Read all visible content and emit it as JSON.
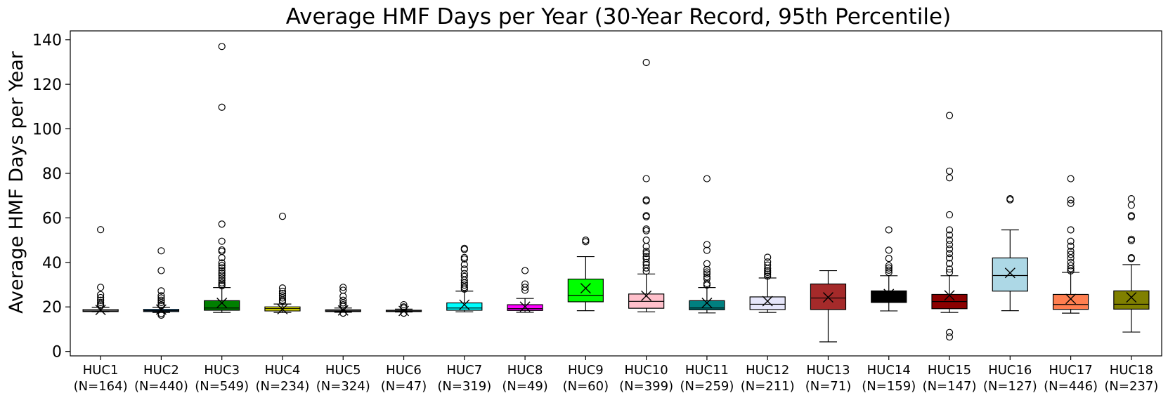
{
  "chart_data": {
    "type": "box",
    "title": "Average HMF Days per Year (30-Year Record, 95th Percentile)",
    "xlabel": "",
    "ylabel": "Average HMF Days per Year",
    "ylim": [
      -2,
      144
    ],
    "yticks": [
      0,
      20,
      40,
      60,
      80,
      100,
      120,
      140
    ],
    "grid": false,
    "categories": [
      {
        "name": "HUC1",
        "n_label": "(N=164)",
        "color": "#d3d3d3",
        "whislo": 17.8,
        "q1": 17.9,
        "med": 18.2,
        "q3": 18.8,
        "whishi": 19.8,
        "mean": 18.6,
        "fliers": [
          54.7,
          28.8,
          25.5,
          24.2,
          23.0,
          22.0,
          21.2,
          20.5
        ]
      },
      {
        "name": "HUC2",
        "n_label": "(N=440)",
        "color": "#1f77b4",
        "whislo": 17.5,
        "q1": 17.9,
        "med": 18.3,
        "q3": 18.9,
        "whishi": 19.8,
        "mean": 18.8,
        "fliers": [
          45.2,
          36.3,
          27.2,
          25.0,
          24.0,
          23.0,
          22.0,
          21.0,
          20.5,
          17.0,
          16.3
        ]
      },
      {
        "name": "HUC3",
        "n_label": "(N=549)",
        "color": "#008000",
        "whislo": 17.5,
        "q1": 18.5,
        "med": 19.5,
        "q3": 22.8,
        "whishi": 28.7,
        "mean": 21.8,
        "fliers": [
          137.0,
          109.7,
          57.2,
          49.5,
          45.6,
          45.0,
          42.1,
          39.8,
          38.6,
          37.6,
          36.3,
          35.2,
          34.2,
          33.0,
          31.9,
          30.8,
          30.0,
          29.5
        ]
      },
      {
        "name": "HUC4",
        "n_label": "(N=234)",
        "color": "#ffff00",
        "whislo": 17.5,
        "q1": 18.2,
        "med": 19.2,
        "q3": 20.0,
        "whishi": 21.3,
        "mean": 19.0,
        "fliers": [
          60.7,
          28.5,
          27.0,
          26.0,
          25.0,
          24.0,
          23.0,
          22.3
        ]
      },
      {
        "name": "HUC5",
        "n_label": "(N=324)",
        "color": "#808080",
        "whislo": 17.6,
        "q1": 17.9,
        "med": 18.2,
        "q3": 18.7,
        "whishi": 19.5,
        "mean": 18.4,
        "fliers": [
          28.8,
          27.5,
          24.8,
          23.0,
          21.8,
          21.0,
          20.3,
          17.2
        ]
      },
      {
        "name": "HUC6",
        "n_label": "(N=47)",
        "color": "#c0c0c0",
        "whislo": 17.7,
        "q1": 17.9,
        "med": 18.1,
        "q3": 18.5,
        "whishi": 19.0,
        "mean": 18.2,
        "fliers": [
          21.0,
          20.0,
          19.5,
          17.2
        ]
      },
      {
        "name": "HUC7",
        "n_label": "(N=319)",
        "color": "#00ffff",
        "whislo": 17.8,
        "q1": 18.5,
        "med": 19.5,
        "q3": 21.8,
        "whishi": 27.1,
        "mean": 21.0,
        "fliers": [
          46.3,
          45.8,
          42.2,
          41.5,
          39.0,
          37.0,
          35.0,
          33.7,
          32.0,
          30.8,
          29.8,
          28.8,
          28.0
        ]
      },
      {
        "name": "HUC8",
        "n_label": "(N=49)",
        "color": "#ff00ff",
        "whislo": 17.6,
        "q1": 18.4,
        "med": 19.2,
        "q3": 21.0,
        "whishi": 23.8,
        "mean": 20.1,
        "fliers": [
          36.3,
          30.3,
          28.8,
          27.5
        ]
      },
      {
        "name": "HUC9",
        "n_label": "(N=60)",
        "color": "#00ff00",
        "whislo": 18.3,
        "q1": 22.3,
        "med": 25.2,
        "q3": 32.5,
        "whishi": 42.6,
        "mean": 28.4,
        "fliers": [
          50.0,
          49.3
        ]
      },
      {
        "name": "HUC10",
        "n_label": "(N=399)",
        "color": "#ffc0cb",
        "whislo": 17.8,
        "q1": 19.4,
        "med": 22.5,
        "q3": 25.8,
        "whishi": 34.8,
        "mean": 25.0,
        "fliers": [
          129.8,
          77.6,
          68.1,
          67.6,
          61.0,
          60.5,
          55.0,
          54.2,
          50.0,
          47.2,
          45.0,
          44.0,
          42.6,
          41.7,
          40.0,
          39.0,
          37.5,
          36.0
        ]
      },
      {
        "name": "HUC11",
        "n_label": "(N=259)",
        "color": "#008080",
        "whislo": 17.3,
        "q1": 18.7,
        "med": 19.5,
        "q3": 22.8,
        "whishi": 28.7,
        "mean": 21.8,
        "fliers": [
          77.6,
          48.0,
          45.4,
          39.4,
          36.8,
          35.7,
          34.8,
          33.5,
          32.7,
          30.5,
          29.8
        ]
      },
      {
        "name": "HUC12",
        "n_label": "(N=211)",
        "color": "#e6e6fa",
        "whislo": 17.5,
        "q1": 18.8,
        "med": 21.2,
        "q3": 24.5,
        "whishi": 33.0,
        "mean": 22.6,
        "fliers": [
          42.3,
          40.2,
          38.8,
          37.3,
          36.2,
          35.5,
          34.7,
          33.8
        ]
      },
      {
        "name": "HUC13",
        "n_label": "(N=71)",
        "color": "#a52a2a",
        "whislo": 4.3,
        "q1": 18.8,
        "med": 24.0,
        "q3": 30.3,
        "whishi": 36.3,
        "mean": 24.3,
        "fliers": []
      },
      {
        "name": "HUC14",
        "n_label": "(N=159)",
        "color": "#000000",
        "whislo": 18.2,
        "q1": 22.0,
        "med": 26.0,
        "q3": 27.2,
        "whishi": 34.0,
        "mean": 25.8,
        "fliers": [
          54.6,
          45.5,
          41.8,
          38.5,
          37.5,
          36.5,
          35.5
        ]
      },
      {
        "name": "HUC15",
        "n_label": "(N=147)",
        "color": "#8b0000",
        "whislo": 17.5,
        "q1": 19.2,
        "med": 22.4,
        "q3": 25.6,
        "whishi": 34.0,
        "mean": 25.2,
        "fliers": [
          106.0,
          81.0,
          78.0,
          61.4,
          54.6,
          52.3,
          50.0,
          48.0,
          46.0,
          44.0,
          42.0,
          39.5,
          37.0,
          35.5,
          8.5,
          6.5
        ]
      },
      {
        "name": "HUC16",
        "n_label": "(N=127)",
        "color": "#add8e6",
        "whislo": 18.3,
        "q1": 27.1,
        "med": 34.1,
        "q3": 42.0,
        "whishi": 54.6,
        "mean": 35.3,
        "fliers": [
          68.6,
          68.1
        ]
      },
      {
        "name": "HUC17",
        "n_label": "(N=446)",
        "color": "#ff7f50",
        "whislo": 17.2,
        "q1": 18.9,
        "med": 21.1,
        "q3": 25.6,
        "whishi": 35.5,
        "mean": 23.6,
        "fliers": [
          77.6,
          68.1,
          66.5,
          54.6,
          49.5,
          47.3,
          45.0,
          43.6,
          42.0,
          40.0,
          38.5,
          37.2,
          36.2
        ]
      },
      {
        "name": "HUC18",
        "n_label": "(N=237)",
        "color": "#808000",
        "whislo": 8.7,
        "q1": 19.0,
        "med": 21.2,
        "q3": 27.2,
        "whishi": 39.0,
        "mean": 24.3,
        "fliers": [
          68.6,
          65.7,
          61.0,
          60.5,
          50.4,
          49.8,
          42.1,
          41.7
        ]
      }
    ]
  }
}
